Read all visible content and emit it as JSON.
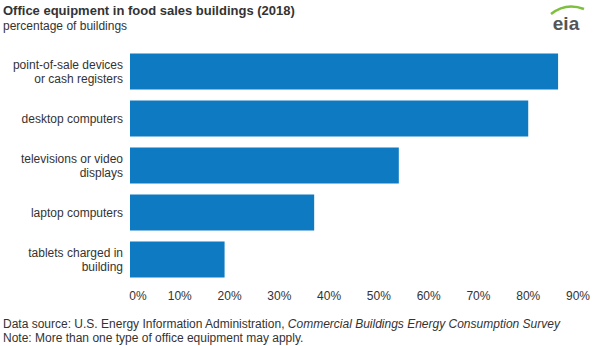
{
  "chart_data": {
    "type": "bar",
    "orientation": "horizontal",
    "title": "Office equipment in food sales buildings (2018)",
    "subtitle": "percentage of buildings",
    "categories": [
      "point-of-sale devices or cash registers",
      "desktop computers",
      "televisions or video displays",
      "laptop computers",
      "tablets charged in building"
    ],
    "values": [
      86,
      80,
      54,
      37,
      19
    ],
    "color": "#0d7ac2",
    "xlim": [
      0,
      90
    ],
    "xticks": [
      {
        "value": 0,
        "label": "0%"
      },
      {
        "value": 10,
        "label": "10%"
      },
      {
        "value": 20,
        "label": "20%"
      },
      {
        "value": 30,
        "label": "30%"
      },
      {
        "value": 40,
        "label": "40%"
      },
      {
        "value": 50,
        "label": "50%"
      },
      {
        "value": 60,
        "label": "60%"
      },
      {
        "value": 70,
        "label": "70%"
      },
      {
        "value": 80,
        "label": "80%"
      },
      {
        "value": 90,
        "label": "90%"
      }
    ],
    "grid": false,
    "annotations": [
      "Data source: U.S. Energy Information Administration, ",
      "Commercial Buildings Energy Consumption Survey",
      "Note: More than one type of office equipment may apply.",
      "eia"
    ]
  }
}
